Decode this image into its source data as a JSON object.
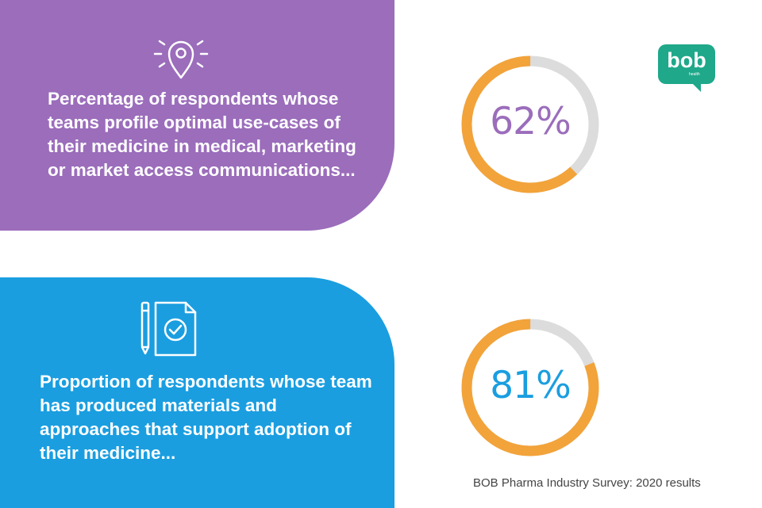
{
  "colors": {
    "purple_panel": "#9b6dbb",
    "blue_panel": "#1a9ee0",
    "donut_fill": "#f2a33a",
    "donut_track": "#dcdcdc",
    "label_purple": "#9b6dbb",
    "label_blue": "#1a9ee0",
    "logo": "#1fa88a"
  },
  "logo": {
    "text": "bob",
    "subtext": "health"
  },
  "stats": [
    {
      "icon": "location-pin-icon",
      "text": "Percentage of respondents whose teams profile optimal use-cases of their medicine in medical, marketing or market access communications...",
      "value_label": "62%"
    },
    {
      "icon": "document-check-icon",
      "text": "Proportion of respondents whose team has produced materials and approaches that support adoption of their medicine...",
      "value_label": "81%"
    }
  ],
  "chart_data": [
    {
      "type": "pie",
      "values": [
        62,
        38
      ],
      "label": "62%"
    },
    {
      "type": "pie",
      "values": [
        81,
        19
      ],
      "label": "81%"
    }
  ],
  "source": "BOB Pharma Industry Survey: 2020 results"
}
